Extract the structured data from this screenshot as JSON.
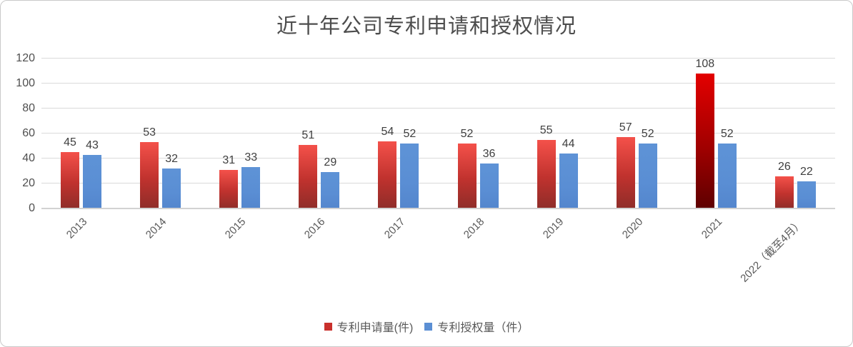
{
  "chart_data": {
    "type": "bar",
    "title": "近十年公司专利申请和授权情况",
    "categories": [
      "2013",
      "2014",
      "2015",
      "2016",
      "2017",
      "2018",
      "2019",
      "2020",
      "2021",
      "2022（截至4月）"
    ],
    "series": [
      {
        "name": "专利申请量(件)",
        "values": [
          45,
          53,
          31,
          51,
          54,
          52,
          55,
          57,
          108,
          26
        ],
        "color": "#c9302c",
        "gradient_top": "#f4514a",
        "gradient_bottom": "#8f2d29"
      },
      {
        "name": "专利授权量（件）",
        "values": [
          43,
          32,
          33,
          29,
          52,
          36,
          44,
          52,
          52,
          22
        ],
        "color": "#5b8fd4"
      }
    ],
    "highlight": {
      "category": "2021",
      "series": "专利申请量(件)",
      "gradient_top": "#e30000",
      "gradient_bottom": "#5e0000"
    },
    "ylim": [
      0,
      120
    ],
    "yticks": [
      0,
      20,
      40,
      60,
      80,
      100,
      120
    ],
    "grid": true,
    "legend_position": "bottom",
    "axis_color": "#d2d2d2",
    "gridline_color": "#dadada"
  }
}
